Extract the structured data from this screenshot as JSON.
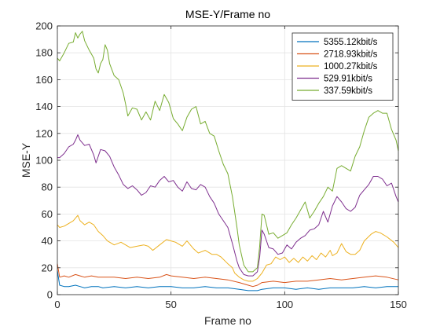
{
  "chart_data": {
    "type": "line",
    "title": "MSE-Y/Frame no",
    "xlabel": "Frame no",
    "ylabel": "MSE-Y",
    "xlim": [
      0,
      150
    ],
    "ylim": [
      0,
      200
    ],
    "xticks": [
      0,
      50,
      100,
      150
    ],
    "yticks": [
      0,
      20,
      40,
      60,
      80,
      100,
      120,
      140,
      160,
      180,
      200
    ],
    "grid": true,
    "legend_position": "top-right",
    "series": [
      {
        "name": "5355.12kbit/s",
        "color": "#0072BD",
        "points": [
          [
            0,
            18
          ],
          [
            1,
            7
          ],
          [
            3,
            6
          ],
          [
            5,
            6
          ],
          [
            8,
            7
          ],
          [
            10,
            6
          ],
          [
            12,
            5
          ],
          [
            15,
            6
          ],
          [
            18,
            6
          ],
          [
            20,
            5
          ],
          [
            25,
            6
          ],
          [
            30,
            5
          ],
          [
            35,
            6
          ],
          [
            40,
            5
          ],
          [
            45,
            6
          ],
          [
            50,
            6
          ],
          [
            55,
            5
          ],
          [
            60,
            5
          ],
          [
            65,
            6
          ],
          [
            70,
            5
          ],
          [
            75,
            5
          ],
          [
            80,
            4
          ],
          [
            84,
            3
          ],
          [
            86,
            3
          ],
          [
            88,
            3
          ],
          [
            90,
            4
          ],
          [
            95,
            5
          ],
          [
            100,
            5
          ],
          [
            105,
            4
          ],
          [
            110,
            5
          ],
          [
            115,
            4
          ],
          [
            120,
            5
          ],
          [
            125,
            5
          ],
          [
            130,
            5
          ],
          [
            135,
            6
          ],
          [
            140,
            5
          ],
          [
            145,
            6
          ],
          [
            150,
            6
          ]
        ]
      },
      {
        "name": "2718.93kbit/s",
        "color": "#D95319",
        "points": [
          [
            0,
            23
          ],
          [
            1,
            13
          ],
          [
            3,
            14
          ],
          [
            5,
            13
          ],
          [
            8,
            15
          ],
          [
            10,
            14
          ],
          [
            12,
            13
          ],
          [
            15,
            14
          ],
          [
            18,
            13
          ],
          [
            20,
            13
          ],
          [
            25,
            13
          ],
          [
            30,
            12
          ],
          [
            35,
            13
          ],
          [
            40,
            12
          ],
          [
            45,
            13
          ],
          [
            48,
            15
          ],
          [
            50,
            14
          ],
          [
            55,
            13
          ],
          [
            60,
            12
          ],
          [
            65,
            13
          ],
          [
            70,
            12
          ],
          [
            75,
            11
          ],
          [
            80,
            9
          ],
          [
            84,
            7
          ],
          [
            86,
            6
          ],
          [
            88,
            7
          ],
          [
            90,
            9
          ],
          [
            95,
            10
          ],
          [
            100,
            9
          ],
          [
            105,
            10
          ],
          [
            110,
            10
          ],
          [
            115,
            11
          ],
          [
            120,
            12
          ],
          [
            125,
            11
          ],
          [
            130,
            12
          ],
          [
            135,
            13
          ],
          [
            140,
            14
          ],
          [
            145,
            13
          ],
          [
            150,
            11
          ]
        ]
      },
      {
        "name": "1000.27kbit/s",
        "color": "#EDB120",
        "points": [
          [
            0,
            52
          ],
          [
            1,
            50
          ],
          [
            3,
            51
          ],
          [
            5,
            53
          ],
          [
            7,
            55
          ],
          [
            9,
            59
          ],
          [
            10,
            55
          ],
          [
            12,
            52
          ],
          [
            14,
            54
          ],
          [
            16,
            52
          ],
          [
            18,
            47
          ],
          [
            20,
            44
          ],
          [
            22,
            40
          ],
          [
            25,
            37
          ],
          [
            28,
            39
          ],
          [
            30,
            37
          ],
          [
            32,
            35
          ],
          [
            35,
            36
          ],
          [
            38,
            37
          ],
          [
            40,
            36
          ],
          [
            42,
            33
          ],
          [
            45,
            37
          ],
          [
            48,
            41
          ],
          [
            50,
            40
          ],
          [
            52,
            39
          ],
          [
            55,
            36
          ],
          [
            57,
            40
          ],
          [
            60,
            34
          ],
          [
            62,
            31
          ],
          [
            65,
            33
          ],
          [
            68,
            30
          ],
          [
            70,
            30
          ],
          [
            72,
            28
          ],
          [
            75,
            23
          ],
          [
            77,
            20
          ],
          [
            78,
            16
          ],
          [
            80,
            13
          ],
          [
            82,
            11
          ],
          [
            84,
            10
          ],
          [
            86,
            10
          ],
          [
            88,
            12
          ],
          [
            90,
            16
          ],
          [
            92,
            22
          ],
          [
            94,
            23
          ],
          [
            96,
            28
          ],
          [
            98,
            26
          ],
          [
            100,
            28
          ],
          [
            102,
            24
          ],
          [
            104,
            27
          ],
          [
            106,
            24
          ],
          [
            108,
            28
          ],
          [
            110,
            25
          ],
          [
            112,
            29
          ],
          [
            114,
            26
          ],
          [
            116,
            31
          ],
          [
            118,
            28
          ],
          [
            120,
            33
          ],
          [
            121,
            29
          ],
          [
            123,
            31
          ],
          [
            125,
            38
          ],
          [
            127,
            32
          ],
          [
            129,
            30
          ],
          [
            131,
            30
          ],
          [
            133,
            33
          ],
          [
            135,
            40
          ],
          [
            138,
            45
          ],
          [
            140,
            47
          ],
          [
            142,
            46
          ],
          [
            145,
            43
          ],
          [
            148,
            39
          ],
          [
            150,
            35
          ]
        ]
      },
      {
        "name": "529.91kbit/s",
        "color": "#7E2F8E",
        "points": [
          [
            0,
            102
          ],
          [
            1,
            102
          ],
          [
            3,
            105
          ],
          [
            5,
            110
          ],
          [
            7,
            112
          ],
          [
            8,
            115
          ],
          [
            9,
            119
          ],
          [
            10,
            115
          ],
          [
            12,
            111
          ],
          [
            14,
            112
          ],
          [
            16,
            104
          ],
          [
            17,
            98
          ],
          [
            19,
            108
          ],
          [
            21,
            107
          ],
          [
            23,
            103
          ],
          [
            25,
            95
          ],
          [
            27,
            89
          ],
          [
            29,
            82
          ],
          [
            31,
            79
          ],
          [
            33,
            81
          ],
          [
            35,
            78
          ],
          [
            37,
            74
          ],
          [
            39,
            76
          ],
          [
            41,
            81
          ],
          [
            43,
            80
          ],
          [
            45,
            85
          ],
          [
            47,
            88
          ],
          [
            49,
            84
          ],
          [
            51,
            85
          ],
          [
            53,
            80
          ],
          [
            55,
            77
          ],
          [
            57,
            84
          ],
          [
            59,
            79
          ],
          [
            61,
            78
          ],
          [
            63,
            82
          ],
          [
            65,
            80
          ],
          [
            67,
            73
          ],
          [
            69,
            68
          ],
          [
            71,
            60
          ],
          [
            73,
            55
          ],
          [
            75,
            50
          ],
          [
            77,
            38
          ],
          [
            79,
            25
          ],
          [
            80,
            20
          ],
          [
            82,
            15
          ],
          [
            84,
            14
          ],
          [
            86,
            14
          ],
          [
            88,
            17
          ],
          [
            89,
            28
          ],
          [
            90,
            48
          ],
          [
            91,
            45
          ],
          [
            93,
            35
          ],
          [
            95,
            34
          ],
          [
            97,
            30
          ],
          [
            99,
            31
          ],
          [
            101,
            37
          ],
          [
            103,
            34
          ],
          [
            105,
            39
          ],
          [
            107,
            42
          ],
          [
            109,
            44
          ],
          [
            111,
            48
          ],
          [
            113,
            49
          ],
          [
            115,
            52
          ],
          [
            117,
            62
          ],
          [
            119,
            54
          ],
          [
            121,
            66
          ],
          [
            123,
            73
          ],
          [
            125,
            69
          ],
          [
            127,
            64
          ],
          [
            129,
            62
          ],
          [
            131,
            65
          ],
          [
            133,
            74
          ],
          [
            135,
            78
          ],
          [
            137,
            82
          ],
          [
            139,
            88
          ],
          [
            141,
            88
          ],
          [
            143,
            86
          ],
          [
            145,
            81
          ],
          [
            147,
            83
          ],
          [
            149,
            73
          ],
          [
            150,
            69
          ]
        ]
      },
      {
        "name": "337.59kbit/s",
        "color": "#77AC30",
        "points": [
          [
            0,
            176
          ],
          [
            1,
            174
          ],
          [
            3,
            180
          ],
          [
            5,
            187
          ],
          [
            7,
            188
          ],
          [
            8,
            195
          ],
          [
            9,
            191
          ],
          [
            10,
            194
          ],
          [
            11,
            196
          ],
          [
            12,
            189
          ],
          [
            14,
            182
          ],
          [
            16,
            176
          ],
          [
            17,
            168
          ],
          [
            18,
            165
          ],
          [
            19,
            172
          ],
          [
            20,
            175
          ],
          [
            21,
            186
          ],
          [
            22,
            182
          ],
          [
            23,
            172
          ],
          [
            25,
            163
          ],
          [
            27,
            160
          ],
          [
            29,
            150
          ],
          [
            30,
            142
          ],
          [
            31,
            133
          ],
          [
            33,
            139
          ],
          [
            35,
            138
          ],
          [
            37,
            130
          ],
          [
            39,
            136
          ],
          [
            41,
            130
          ],
          [
            43,
            144
          ],
          [
            45,
            137
          ],
          [
            47,
            149
          ],
          [
            49,
            143
          ],
          [
            51,
            131
          ],
          [
            53,
            127
          ],
          [
            55,
            122
          ],
          [
            57,
            132
          ],
          [
            59,
            138
          ],
          [
            61,
            140
          ],
          [
            63,
            127
          ],
          [
            65,
            129
          ],
          [
            67,
            120
          ],
          [
            69,
            118
          ],
          [
            71,
            107
          ],
          [
            73,
            97
          ],
          [
            75,
            90
          ],
          [
            77,
            73
          ],
          [
            79,
            50
          ],
          [
            80,
            37
          ],
          [
            82,
            22
          ],
          [
            84,
            17
          ],
          [
            86,
            17
          ],
          [
            88,
            20
          ],
          [
            89,
            36
          ],
          [
            90,
            60
          ],
          [
            91,
            59
          ],
          [
            93,
            45
          ],
          [
            95,
            46
          ],
          [
            97,
            42
          ],
          [
            99,
            44
          ],
          [
            101,
            46
          ],
          [
            103,
            52
          ],
          [
            105,
            57
          ],
          [
            107,
            63
          ],
          [
            109,
            69
          ],
          [
            111,
            57
          ],
          [
            113,
            62
          ],
          [
            115,
            68
          ],
          [
            117,
            73
          ],
          [
            119,
            80
          ],
          [
            121,
            77
          ],
          [
            123,
            94
          ],
          [
            125,
            96
          ],
          [
            127,
            94
          ],
          [
            129,
            92
          ],
          [
            131,
            103
          ],
          [
            133,
            110
          ],
          [
            135,
            122
          ],
          [
            137,
            132
          ],
          [
            139,
            135
          ],
          [
            141,
            137
          ],
          [
            143,
            135
          ],
          [
            145,
            135
          ],
          [
            147,
            123
          ],
          [
            149,
            115
          ],
          [
            150,
            107
          ]
        ]
      }
    ]
  }
}
